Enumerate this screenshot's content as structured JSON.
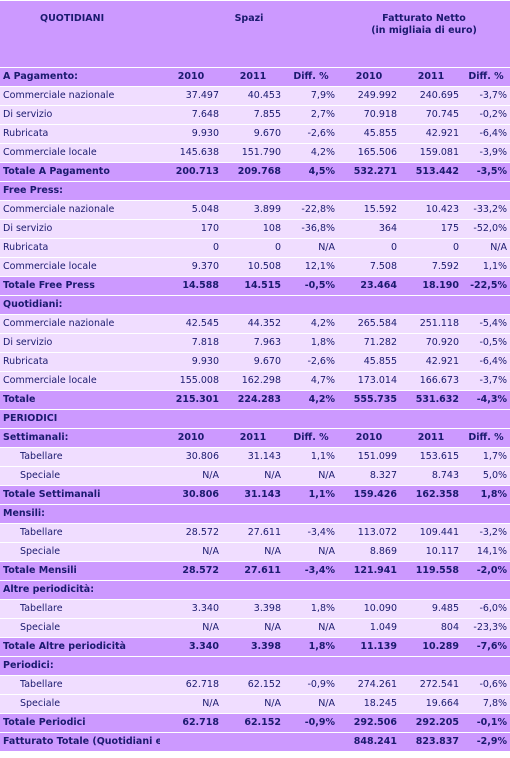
{
  "header": {
    "quotidiani": "QUOTIDIANI",
    "spazi": "Spazi",
    "fatturato": "Fatturato Netto",
    "fatturato_sub": "(in migliaia di euro)"
  },
  "col_labels": [
    "2010",
    "2011",
    "Diff. %",
    "2010",
    "2011",
    "Diff. %"
  ],
  "quotidiani": {
    "a_pagamento": {
      "title": "A Pagamento:",
      "rows": [
        [
          "Commerciale nazionale",
          "37.497",
          "40.453",
          "7,9%",
          "249.992",
          "240.695",
          "-3,7%"
        ],
        [
          "Di servizio",
          "7.648",
          "7.855",
          "2,7%",
          "70.918",
          "70.745",
          "-0,2%"
        ],
        [
          "Rubricata",
          "9.930",
          "9.670",
          "-2,6%",
          "45.855",
          "42.921",
          "-6,4%"
        ],
        [
          "Commerciale locale",
          "145.638",
          "151.790",
          "4,2%",
          "165.506",
          "159.081",
          "-3,9%"
        ]
      ],
      "total": [
        "Totale A Pagamento",
        "200.713",
        "209.768",
        "4,5%",
        "532.271",
        "513.442",
        "-3,5%"
      ]
    },
    "free_press": {
      "title": "Free Press:",
      "rows": [
        [
          "Commerciale nazionale",
          "5.048",
          "3.899",
          "-22,8%",
          "15.592",
          "10.423",
          "-33,2%"
        ],
        [
          "Di servizio",
          "170",
          "108",
          "-36,8%",
          "364",
          "175",
          "-52,0%"
        ],
        [
          "Rubricata",
          "0",
          "0",
          "N/A",
          "0",
          "0",
          "N/A"
        ],
        [
          "Commerciale locale",
          "9.370",
          "10.508",
          "12,1%",
          "7.508",
          "7.592",
          "1,1%"
        ]
      ],
      "total": [
        "Totale Free Press",
        "14.588",
        "14.515",
        "-0,5%",
        "23.464",
        "18.190",
        "-22,5%"
      ]
    },
    "quotidiani": {
      "title": "Quotidiani:",
      "rows": [
        [
          "Commerciale nazionale",
          "42.545",
          "44.352",
          "4,2%",
          "265.584",
          "251.118",
          "-5,4%"
        ],
        [
          "Di servizio",
          "7.818",
          "7.963",
          "1,8%",
          "71.282",
          "70.920",
          "-0,5%"
        ],
        [
          "Rubricata",
          "9.930",
          "9.670",
          "-2,6%",
          "45.855",
          "42.921",
          "-6,4%"
        ],
        [
          "Commerciale locale",
          "155.008",
          "162.298",
          "4,7%",
          "173.014",
          "166.673",
          "-3,7%"
        ]
      ],
      "total": [
        "Totale",
        "215.301",
        "224.283",
        "4,2%",
        "555.735",
        "531.632",
        "-4,3%"
      ]
    }
  },
  "periodici": {
    "title": "PERIODICI",
    "settimanali": {
      "title": "Settimanali:",
      "rows": [
        [
          "Tabellare",
          "30.806",
          "31.143",
          "1,1%",
          "151.099",
          "153.615",
          "1,7%"
        ],
        [
          "Speciale",
          "N/A",
          "N/A",
          "N/A",
          "8.327",
          "8.743",
          "5,0%"
        ]
      ],
      "total": [
        "Totale Settimanali",
        "30.806",
        "31.143",
        "1,1%",
        "159.426",
        "162.358",
        "1,8%"
      ]
    },
    "mensili": {
      "title": "Mensili:",
      "rows": [
        [
          "Tabellare",
          "28.572",
          "27.611",
          "-3,4%",
          "113.072",
          "109.441",
          "-3,2%"
        ],
        [
          "Speciale",
          "N/A",
          "N/A",
          "N/A",
          "8.869",
          "10.117",
          "14,1%"
        ]
      ],
      "total": [
        "Totale Mensili",
        "28.572",
        "27.611",
        "-3,4%",
        "121.941",
        "119.558",
        "-2,0%"
      ]
    },
    "altre": {
      "title": "Altre periodicità:",
      "rows": [
        [
          "Tabellare",
          "3.340",
          "3.398",
          "1,8%",
          "10.090",
          "9.485",
          "-6,0%"
        ],
        [
          "Speciale",
          "N/A",
          "N/A",
          "N/A",
          "1.049",
          "804",
          "-23,3%"
        ]
      ],
      "total": [
        "Totale Altre periodicità",
        "3.340",
        "3.398",
        "1,8%",
        "11.139",
        "10.289",
        "-7,6%"
      ]
    },
    "periodici": {
      "title": "Periodici:",
      "rows": [
        [
          "Tabellare",
          "62.718",
          "62.152",
          "-0,9%",
          "274.261",
          "272.541",
          "-0,6%"
        ],
        [
          "Speciale",
          "N/A",
          "N/A",
          "N/A",
          "18.245",
          "19.664",
          "7,8%"
        ]
      ],
      "total": [
        "Totale Periodici",
        "62.718",
        "62.152",
        "-0,9%",
        "292.506",
        "292.205",
        "-0,1%"
      ]
    }
  },
  "grand_total": [
    "Fatturato Totale (Quotidiani e Periodici)",
    "",
    "",
    "",
    "848.241",
    "823.837",
    "-2,9%"
  ]
}
